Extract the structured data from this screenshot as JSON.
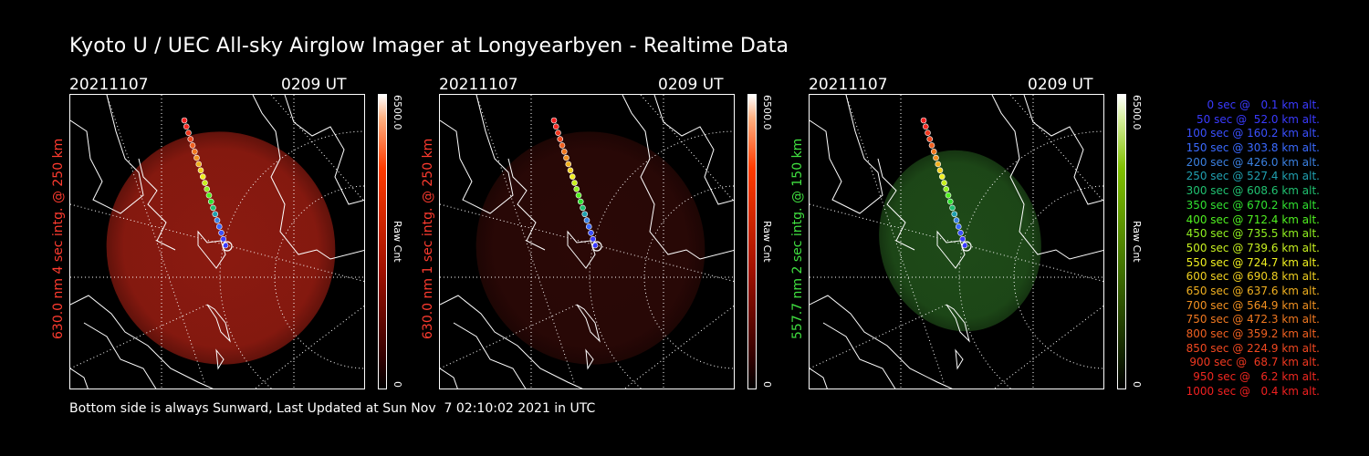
{
  "title": "Kyoto U / UEC All-sky Airglow Imager at Longyearbyen - Realtime Data",
  "footer": "Bottom side is always Sunward, Last Updated at Sun Nov  7 02:10:02 2021 in UTC",
  "panels": [
    {
      "date": "20211107",
      "time": "0209 UT",
      "side_label": "630.0 nm 4 sec intg. @ 250 km",
      "side_color": "#ff3b2f",
      "scale_max": "6500.0",
      "scale_min": "0",
      "scale_unit": "Raw Cnt",
      "image_color": "#8b1a10",
      "cbar_color": "#ff2200",
      "ellipse": "large"
    },
    {
      "date": "20211107",
      "time": "0209 UT",
      "side_label": "630.0 nm 1 sec intg. @ 250 km",
      "side_color": "#ff3b2f",
      "scale_max": "6500.0",
      "scale_min": "0",
      "scale_unit": "Raw Cnt",
      "image_color": "#2a0806",
      "cbar_color": "#ff2200",
      "ellipse": "large"
    },
    {
      "date": "20211107",
      "time": "0209 UT",
      "side_label": "557.7 nm 2 sec intg. @ 150 km",
      "side_color": "#40e040",
      "scale_max": "6500.0",
      "scale_min": "0",
      "scale_unit": "Raw Cnt",
      "image_color": "#1e4a18",
      "cbar_color": "#5fc000",
      "ellipse": "small"
    }
  ],
  "legend": [
    {
      "text": "0 sec @   0.1 km alt.",
      "color": "#3a3aff"
    },
    {
      "text": "50 sec @  52.0 km alt.",
      "color": "#3a3aff"
    },
    {
      "text": "100 sec @ 160.2 km alt.",
      "color": "#3a50ff"
    },
    {
      "text": "150 sec @ 303.8 km alt.",
      "color": "#3a6aff"
    },
    {
      "text": "200 sec @ 426.0 km alt.",
      "color": "#3a80e0"
    },
    {
      "text": "250 sec @ 527.4 km alt.",
      "color": "#20a0b0"
    },
    {
      "text": "300 sec @ 608.6 km alt.",
      "color": "#20c070"
    },
    {
      "text": "350 sec @ 670.2 km alt.",
      "color": "#30e030"
    },
    {
      "text": "400 sec @ 712.4 km alt.",
      "color": "#50f020"
    },
    {
      "text": "450 sec @ 735.5 km alt.",
      "color": "#90f020"
    },
    {
      "text": "500 sec @ 739.6 km alt.",
      "color": "#c8f020"
    },
    {
      "text": "550 sec @ 724.7 km alt.",
      "color": "#f0f020"
    },
    {
      "text": "600 sec @ 690.8 km alt.",
      "color": "#f0d020"
    },
    {
      "text": "650 sec @ 637.6 km alt.",
      "color": "#f0b020"
    },
    {
      "text": "700 sec @ 564.9 km alt.",
      "color": "#f09020"
    },
    {
      "text": "750 sec @ 472.3 km alt.",
      "color": "#f07820"
    },
    {
      "text": "800 sec @ 359.2 km alt.",
      "color": "#f06020"
    },
    {
      "text": "850 sec @ 224.9 km alt.",
      "color": "#f04820"
    },
    {
      "text": "900 sec @  68.7 km alt.",
      "color": "#f03820"
    },
    {
      "text": "950 sec @   6.2 km alt.",
      "color": "#f02820"
    },
    {
      "text": "1000 sec @   0.4 km alt.",
      "color": "#f02020"
    }
  ]
}
